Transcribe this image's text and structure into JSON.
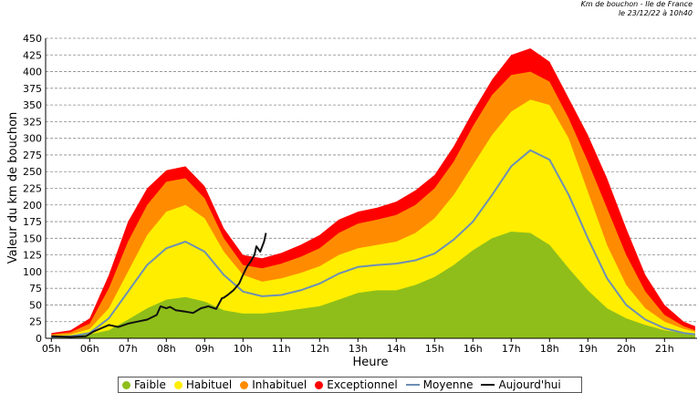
{
  "header": {
    "line1": "Km de bouchon - Ile de France",
    "line2": "le 23/12/22 à 10h40"
  },
  "chart_data": {
    "type": "area",
    "xlabel": "Heure",
    "ylabel": "Valeur du  km de bouchon",
    "x_ticks": [
      "05h",
      "06h",
      "07h",
      "08h",
      "09h",
      "10h",
      "11h",
      "12h",
      "13h",
      "14h",
      "15h",
      "16h",
      "17h",
      "18h",
      "19h",
      "20h",
      "21h"
    ],
    "y_ticks": [
      0,
      25,
      50,
      75,
      100,
      125,
      150,
      175,
      200,
      225,
      250,
      275,
      300,
      325,
      350,
      375,
      400,
      425,
      450
    ],
    "ylim": [
      0,
      450
    ],
    "xlim_hours": [
      4.85,
      21.85
    ],
    "grid": true,
    "legend_position": "bottom",
    "colors": {
      "faible": "#8fbe1a",
      "habituel": "#ffee00",
      "inhabituel": "#ff8c00",
      "exceptionnel": "#ff0000",
      "moyenne": "#6d8fb4",
      "aujourdhui": "#111111"
    },
    "bands_hours": [
      5.0,
      5.5,
      6.0,
      6.5,
      7.0,
      7.5,
      8.0,
      8.5,
      9.0,
      9.5,
      10.0,
      10.5,
      11.0,
      11.5,
      12.0,
      12.5,
      13.0,
      13.5,
      14.0,
      14.5,
      15.0,
      15.5,
      16.0,
      16.5,
      17.0,
      17.5,
      18.0,
      18.5,
      19.0,
      19.5,
      20.0,
      20.5,
      21.0,
      21.5,
      21.8
    ],
    "series": [
      {
        "name": "Faible",
        "kind": "band",
        "values": [
          3,
          4,
          6,
          12,
          28,
          45,
          58,
          62,
          55,
          42,
          37,
          37,
          40,
          44,
          48,
          58,
          68,
          72,
          72,
          80,
          92,
          110,
          132,
          150,
          160,
          158,
          140,
          105,
          72,
          45,
          30,
          20,
          12,
          8,
          6
        ]
      },
      {
        "name": "Habituel",
        "kind": "band",
        "values": [
          4,
          6,
          14,
          45,
          100,
          155,
          190,
          200,
          180,
          130,
          95,
          85,
          90,
          98,
          108,
          125,
          135,
          140,
          145,
          158,
          180,
          215,
          260,
          305,
          340,
          358,
          350,
          300,
          220,
          140,
          80,
          45,
          25,
          14,
          10
        ]
      },
      {
        "name": "Inhabituel",
        "kind": "band",
        "values": [
          6,
          9,
          22,
          75,
          145,
          200,
          235,
          240,
          210,
          150,
          110,
          105,
          112,
          122,
          135,
          158,
          172,
          178,
          185,
          200,
          225,
          265,
          318,
          365,
          395,
          400,
          385,
          330,
          265,
          195,
          125,
          70,
          35,
          18,
          12
        ]
      },
      {
        "name": "Exceptionnel",
        "kind": "band",
        "values": [
          8,
          12,
          30,
          95,
          175,
          225,
          252,
          258,
          228,
          165,
          125,
          120,
          128,
          140,
          155,
          178,
          190,
          196,
          205,
          222,
          245,
          288,
          340,
          388,
          425,
          435,
          415,
          360,
          305,
          240,
          165,
          95,
          50,
          25,
          18
        ]
      },
      {
        "name": "Moyenne",
        "kind": "line",
        "values": [
          2,
          3,
          8,
          30,
          70,
          110,
          135,
          145,
          130,
          95,
          70,
          63,
          65,
          72,
          82,
          97,
          107,
          110,
          112,
          117,
          127,
          148,
          175,
          215,
          258,
          282,
          268,
          215,
          150,
          90,
          50,
          28,
          15,
          8,
          6
        ]
      },
      {
        "name": "Aujourd'hui",
        "kind": "line",
        "hours": [
          5.0,
          5.5,
          5.9,
          6.1,
          6.3,
          6.5,
          6.75,
          7.0,
          7.25,
          7.5,
          7.75,
          7.85,
          8.0,
          8.1,
          8.25,
          8.5,
          8.7,
          8.9,
          9.1,
          9.3,
          9.45,
          9.5,
          9.6,
          9.75,
          9.9,
          10.0,
          10.1,
          10.2,
          10.3,
          10.35,
          10.45,
          10.55,
          10.6
        ],
        "values": [
          3,
          2,
          3,
          10,
          15,
          20,
          17,
          22,
          25,
          28,
          35,
          48,
          45,
          47,
          42,
          40,
          38,
          45,
          48,
          44,
          60,
          61,
          65,
          72,
          82,
          95,
          107,
          115,
          125,
          138,
          130,
          145,
          158
        ]
      }
    ]
  },
  "legend": {
    "items": [
      {
        "label": "Faible",
        "marker": "dot",
        "color": "#8fbe1a"
      },
      {
        "label": "Habituel",
        "marker": "dot",
        "color": "#ffee00"
      },
      {
        "label": "Inhabituel",
        "marker": "dot",
        "color": "#ff8c00"
      },
      {
        "label": "Exceptionnel",
        "marker": "dot",
        "color": "#ff0000"
      },
      {
        "label": "Moyenne",
        "marker": "line",
        "color": "#6d8fb4"
      },
      {
        "label": "Aujourd'hui",
        "marker": "line",
        "color": "#111111"
      }
    ]
  }
}
